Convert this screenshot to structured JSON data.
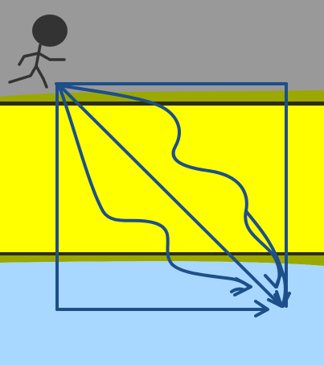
{
  "colors": {
    "sky": "#999999",
    "road_band": "#ffff00",
    "grass_edge": "#9aa800",
    "edge_line": "#2d2d00",
    "water": "#a8d8ff",
    "arrow": "#1d4f8a",
    "figure": "#333333"
  },
  "elements": {
    "figure": "stick-figure-runner",
    "box": "route-box",
    "routes": [
      "straight-diagonal-arrow",
      "wavy-route-upper-arrow",
      "wavy-route-lower-arrow",
      "right-angle-route-arrow"
    ]
  }
}
